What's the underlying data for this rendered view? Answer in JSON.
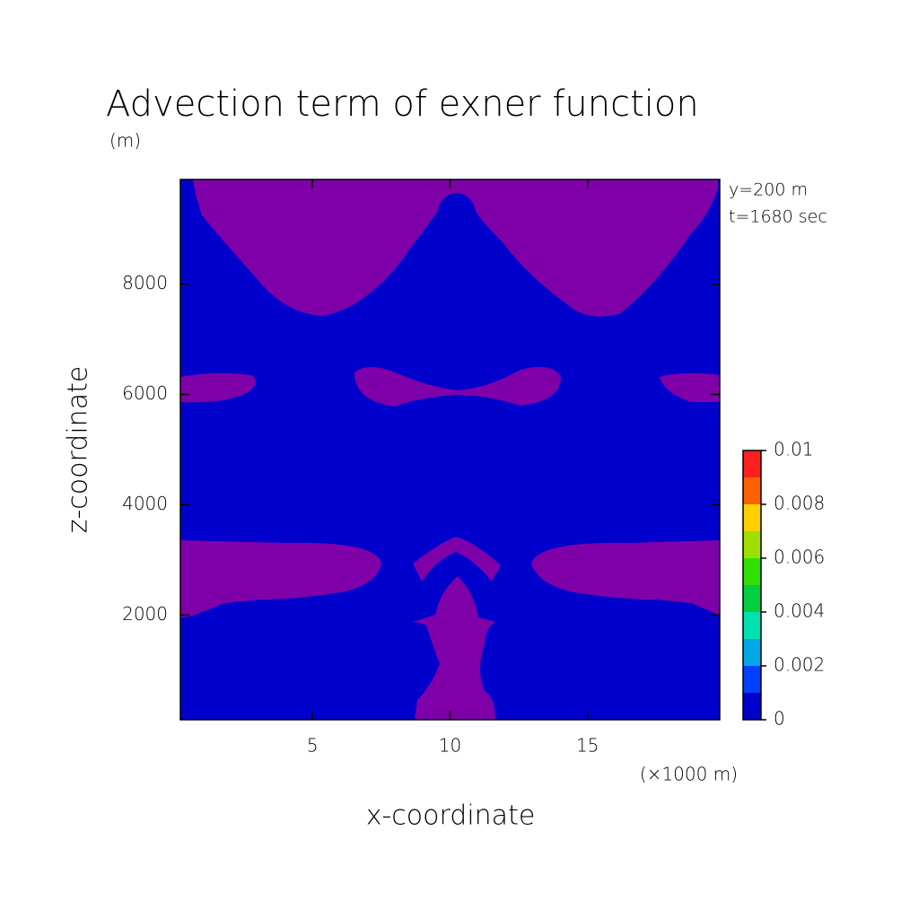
{
  "chart_data": {
    "type": "contour",
    "title": "Advection term of exner function",
    "y_unit": "(m)",
    "x_unit": "(×1000 m)",
    "xlabel": "x-coordinate",
    "ylabel": "z-coordinate",
    "annotations": [
      "y=200 m",
      "t=1680 sec"
    ],
    "xlim": [
      0.2,
      19.8
    ],
    "xticks": [
      5,
      10,
      15
    ],
    "ylim": [
      100,
      9900
    ],
    "yticks": [
      2000,
      4000,
      6000,
      8000
    ],
    "under_color": "#7f00a8",
    "colorbar": {
      "levels": [
        0,
        0.001,
        0.002,
        0.003,
        0.004,
        0.005,
        0.006,
        0.007,
        0.008,
        0.009,
        0.01
      ],
      "colors": [
        "#0000cd",
        "#0040ff",
        "#00a8e8",
        "#00e0b0",
        "#00d040",
        "#30e000",
        "#a0e000",
        "#ffd000",
        "#ff6000",
        "#ff2020"
      ],
      "ticks": [
        0,
        0.002,
        0.004,
        0.006,
        0.008,
        0.01
      ]
    }
  }
}
